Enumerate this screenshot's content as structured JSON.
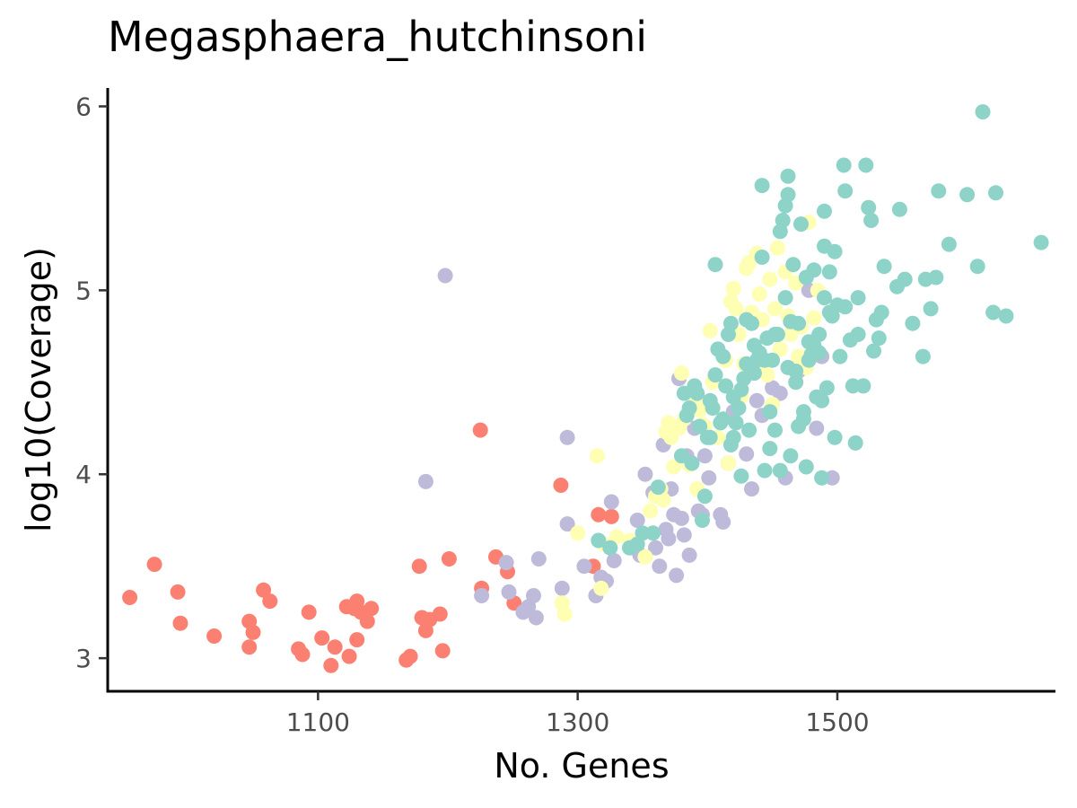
{
  "chart_data": {
    "type": "scatter",
    "title": "Megasphaera_hutchinsoni",
    "xlabel": "No. Genes",
    "ylabel": "log10(Coverage)",
    "xlim": [
      938,
      1668
    ],
    "ylim": [
      2.82,
      6.1
    ],
    "x_ticks": [
      1100,
      1300,
      1500
    ],
    "y_ticks": [
      3,
      4,
      5,
      6
    ],
    "grid": false,
    "legend": "none",
    "series": [
      {
        "color": "#FB8072",
        "points": [
          [
            955,
            3.33
          ],
          [
            974,
            3.51
          ],
          [
            992,
            3.36
          ],
          [
            994,
            3.19
          ],
          [
            1020,
            3.12
          ],
          [
            1047,
            3.06
          ],
          [
            1047,
            3.2
          ],
          [
            1050,
            3.14
          ],
          [
            1058,
            3.37
          ],
          [
            1063,
            3.31
          ],
          [
            1085,
            3.05
          ],
          [
            1088,
            3.02
          ],
          [
            1093,
            3.25
          ],
          [
            1103,
            3.11
          ],
          [
            1110,
            2.96
          ],
          [
            1113,
            3.06
          ],
          [
            1122,
            3.28
          ],
          [
            1124,
            3.01
          ],
          [
            1128,
            3.27
          ],
          [
            1130,
            3.31
          ],
          [
            1130,
            3.1
          ],
          [
            1133,
            3.25
          ],
          [
            1138,
            3.2
          ],
          [
            1141,
            3.27
          ],
          [
            1168,
            2.99
          ],
          [
            1171,
            3.01
          ],
          [
            1178,
            3.5
          ],
          [
            1180,
            3.22
          ],
          [
            1183,
            3.15
          ],
          [
            1186,
            3.21
          ],
          [
            1194,
            3.24
          ],
          [
            1196,
            3.04
          ],
          [
            1201,
            3.54
          ],
          [
            1225,
            4.24
          ],
          [
            1226,
            3.38
          ],
          [
            1237,
            3.55
          ],
          [
            1246,
            3.47
          ],
          [
            1251,
            3.3
          ],
          [
            1287,
            3.94
          ],
          [
            1312,
            3.5
          ],
          [
            1316,
            3.78
          ],
          [
            1326,
            3.77
          ]
        ]
      },
      {
        "color": "#BEBADA",
        "points": [
          [
            1198,
            5.08
          ],
          [
            1183,
            3.96
          ],
          [
            1226,
            3.34
          ],
          [
            1245,
            3.52
          ],
          [
            1247,
            3.36
          ],
          [
            1258,
            3.25
          ],
          [
            1262,
            3.28
          ],
          [
            1266,
            3.34
          ],
          [
            1268,
            3.22
          ],
          [
            1270,
            3.54
          ],
          [
            1288,
            3.38
          ],
          [
            1292,
            3.73
          ],
          [
            1292,
            4.2
          ],
          [
            1305,
            3.5
          ],
          [
            1314,
            3.34
          ],
          [
            1318,
            3.44
          ],
          [
            1322,
            3.42
          ],
          [
            1326,
            3.85
          ],
          [
            1328,
            3.53
          ],
          [
            1342,
            3.6
          ],
          [
            1346,
            3.75
          ],
          [
            1348,
            3.56
          ],
          [
            1352,
            4.0
          ],
          [
            1358,
            3.9
          ],
          [
            1360,
            3.6
          ],
          [
            1363,
            3.5
          ],
          [
            1366,
            4.16
          ],
          [
            1368,
            3.7
          ],
          [
            1370,
            3.65
          ],
          [
            1372,
            3.92
          ],
          [
            1374,
            3.78
          ],
          [
            1376,
            3.45
          ],
          [
            1378,
            4.52
          ],
          [
            1380,
            3.76
          ],
          [
            1382,
            3.67
          ],
          [
            1384,
            4.1
          ],
          [
            1386,
            3.56
          ],
          [
            1390,
            4.25
          ],
          [
            1393,
            3.8
          ],
          [
            1396,
            3.78
          ],
          [
            1398,
            4.1
          ],
          [
            1401,
            3.98
          ],
          [
            1410,
            3.78
          ],
          [
            1412,
            3.74
          ],
          [
            1416,
            4.06
          ],
          [
            1420,
            4.34
          ],
          [
            1430,
            4.11
          ],
          [
            1434,
            3.92
          ],
          [
            1438,
            4.4
          ],
          [
            1442,
            4.32
          ],
          [
            1450,
            4.47
          ],
          [
            1456,
            4.44
          ],
          [
            1460,
            3.98
          ],
          [
            1470,
            4.56
          ],
          [
            1478,
            5.0
          ],
          [
            1484,
            4.25
          ],
          [
            1488,
            4.64
          ],
          [
            1496,
            3.98
          ]
        ]
      },
      {
        "color": "#FFFFB3",
        "points": [
          [
            1288,
            3.3
          ],
          [
            1290,
            3.24
          ],
          [
            1300,
            3.68
          ],
          [
            1315,
            4.1
          ],
          [
            1318,
            3.38
          ],
          [
            1320,
            3.62
          ],
          [
            1330,
            3.66
          ],
          [
            1340,
            3.64
          ],
          [
            1352,
            3.55
          ],
          [
            1356,
            3.8
          ],
          [
            1360,
            3.88
          ],
          [
            1364,
            3.92
          ],
          [
            1366,
            3.86
          ],
          [
            1368,
            4.23
          ],
          [
            1370,
            4.28
          ],
          [
            1372,
            4.2
          ],
          [
            1374,
            4.04
          ],
          [
            1378,
            4.25
          ],
          [
            1380,
            4.55
          ],
          [
            1382,
            4.3
          ],
          [
            1386,
            4.05
          ],
          [
            1390,
            4.4
          ],
          [
            1392,
            3.92
          ],
          [
            1394,
            4.35
          ],
          [
            1396,
            4.27
          ],
          [
            1398,
            4.26
          ],
          [
            1402,
            4.78
          ],
          [
            1404,
            4.5
          ],
          [
            1408,
            4.2
          ],
          [
            1412,
            4.3
          ],
          [
            1414,
            4.62
          ],
          [
            1416,
            4.06
          ],
          [
            1418,
            4.94
          ],
          [
            1420,
            5.01
          ],
          [
            1422,
            4.9
          ],
          [
            1424,
            4.76
          ],
          [
            1426,
            4.42
          ],
          [
            1428,
            4.6
          ],
          [
            1430,
            5.12
          ],
          [
            1432,
            5.15
          ],
          [
            1434,
            4.88
          ],
          [
            1436,
            4.7
          ],
          [
            1438,
            5.2
          ],
          [
            1440,
            4.98
          ],
          [
            1442,
            4.84
          ],
          [
            1444,
            4.6
          ],
          [
            1446,
            4.54
          ],
          [
            1448,
            5.06
          ],
          [
            1450,
            4.38
          ],
          [
            1452,
            4.9
          ],
          [
            1454,
            5.23
          ],
          [
            1456,
            4.68
          ],
          [
            1460,
            5.1
          ],
          [
            1462,
            4.86
          ],
          [
            1464,
            4.76
          ],
          [
            1468,
            5.04
          ],
          [
            1470,
            4.64
          ],
          [
            1472,
            4.8
          ],
          [
            1474,
            4.6
          ],
          [
            1476,
            4.58
          ],
          [
            1478,
            5.37
          ],
          [
            1480,
            4.66
          ],
          [
            1482,
            4.85
          ],
          [
            1485,
            5.0
          ]
        ]
      },
      {
        "color": "#8DD3C7",
        "points": [
          [
            1612,
            5.97
          ],
          [
            1657,
            5.26
          ],
          [
            1622,
            5.53
          ],
          [
            1620,
            4.88
          ],
          [
            1630,
            4.86
          ],
          [
            1600,
            5.52
          ],
          [
            1608,
            5.13
          ],
          [
            1586,
            5.25
          ],
          [
            1578,
            5.54
          ],
          [
            1576,
            5.07
          ],
          [
            1572,
            4.9
          ],
          [
            1568,
            5.06
          ],
          [
            1566,
            4.64
          ],
          [
            1558,
            4.82
          ],
          [
            1552,
            5.06
          ],
          [
            1548,
            5.44
          ],
          [
            1546,
            5.02
          ],
          [
            1536,
            5.13
          ],
          [
            1534,
            4.88
          ],
          [
            1532,
            4.74
          ],
          [
            1528,
            4.67
          ],
          [
            1526,
            5.38
          ],
          [
            1524,
            5.45
          ],
          [
            1522,
            5.68
          ],
          [
            1520,
            4.48
          ],
          [
            1516,
            4.76
          ],
          [
            1514,
            4.17
          ],
          [
            1512,
            4.48
          ],
          [
            1510,
            4.73
          ],
          [
            1506,
            5.54
          ],
          [
            1505,
            5.68
          ],
          [
            1502,
            4.64
          ],
          [
            1500,
            4.92
          ],
          [
            1498,
            5.21
          ],
          [
            1496,
            4.86
          ],
          [
            1494,
            5.1
          ],
          [
            1492,
            4.47
          ],
          [
            1490,
            5.24
          ],
          [
            1490,
            5.43
          ],
          [
            1488,
            3.98
          ],
          [
            1486,
            4.76
          ],
          [
            1484,
            4.42
          ],
          [
            1482,
            5.11
          ],
          [
            1480,
            4.65
          ],
          [
            1478,
            4.72
          ],
          [
            1476,
            4.04
          ],
          [
            1474,
            4.34
          ],
          [
            1472,
            5.36
          ],
          [
            1470,
            4.26
          ],
          [
            1468,
            4.5
          ],
          [
            1466,
            5.14
          ],
          [
            1464,
            4.1
          ],
          [
            1462,
            5.52
          ],
          [
            1462,
            5.62
          ],
          [
            1460,
            5.46
          ],
          [
            1458,
            5.38
          ],
          [
            1456,
            5.32
          ],
          [
            1454,
            4.76
          ],
          [
            1452,
            4.24
          ],
          [
            1450,
            4.62
          ],
          [
            1448,
            4.14
          ],
          [
            1446,
            4.74
          ],
          [
            1444,
            4.02
          ],
          [
            1442,
            5.18
          ],
          [
            1442,
            5.57
          ],
          [
            1440,
            4.66
          ],
          [
            1438,
            4.62
          ],
          [
            1436,
            4.7
          ],
          [
            1434,
            4.82
          ],
          [
            1432,
            4.24
          ],
          [
            1430,
            4.6
          ],
          [
            1428,
            4.52
          ],
          [
            1426,
            4.46
          ],
          [
            1424,
            4.36
          ],
          [
            1422,
            4.28
          ],
          [
            1420,
            4.2
          ],
          [
            1418,
            4.16
          ],
          [
            1416,
            4.76
          ],
          [
            1414,
            4.48
          ],
          [
            1412,
            4.64
          ],
          [
            1410,
            4.28
          ],
          [
            1408,
            4.68
          ],
          [
            1406,
            4.54
          ],
          [
            1404,
            4.36
          ],
          [
            1402,
            4.4
          ],
          [
            1400,
            4.2
          ],
          [
            1398,
            3.88
          ],
          [
            1396,
            3.75
          ],
          [
            1394,
            4.26
          ],
          [
            1392,
            4.44
          ],
          [
            1390,
            4.48
          ],
          [
            1388,
            4.06
          ],
          [
            1386,
            4.36
          ],
          [
            1384,
            4.32
          ],
          [
            1382,
            4.44
          ],
          [
            1380,
            4.1
          ],
          [
            1362,
            3.93
          ],
          [
            1358,
            3.68
          ],
          [
            1350,
            3.68
          ],
          [
            1346,
            3.62
          ],
          [
            1340,
            3.6
          ],
          [
            1325,
            3.6
          ],
          [
            1316,
            3.64
          ],
          [
            1406,
            5.14
          ],
          [
            1418,
            4.82
          ],
          [
            1430,
            4.84
          ],
          [
            1436,
            4.55
          ],
          [
            1444,
            4.62
          ],
          [
            1452,
            4.76
          ],
          [
            1460,
            4.96
          ],
          [
            1464,
            4.83
          ],
          [
            1468,
            4.56
          ],
          [
            1474,
            4.3
          ],
          [
            1478,
            4.62
          ],
          [
            1482,
            4.7
          ],
          [
            1486,
            4.66
          ],
          [
            1488,
            4.4
          ],
          [
            1490,
            4.96
          ],
          [
            1498,
            4.2
          ],
          [
            1402,
            4.2
          ],
          [
            1412,
            4.3
          ],
          [
            1420,
            4.42
          ],
          [
            1426,
            3.99
          ],
          [
            1448,
            4.34
          ],
          [
            1456,
            4.02
          ],
          [
            1462,
            4.58
          ],
          [
            1470,
            4.82
          ],
          [
            1476,
            5.07
          ],
          [
            1494,
            4.88
          ],
          [
            1506,
            4.91
          ],
          [
            1516,
            4.96
          ],
          [
            1530,
            4.84
          ]
        ]
      }
    ]
  }
}
